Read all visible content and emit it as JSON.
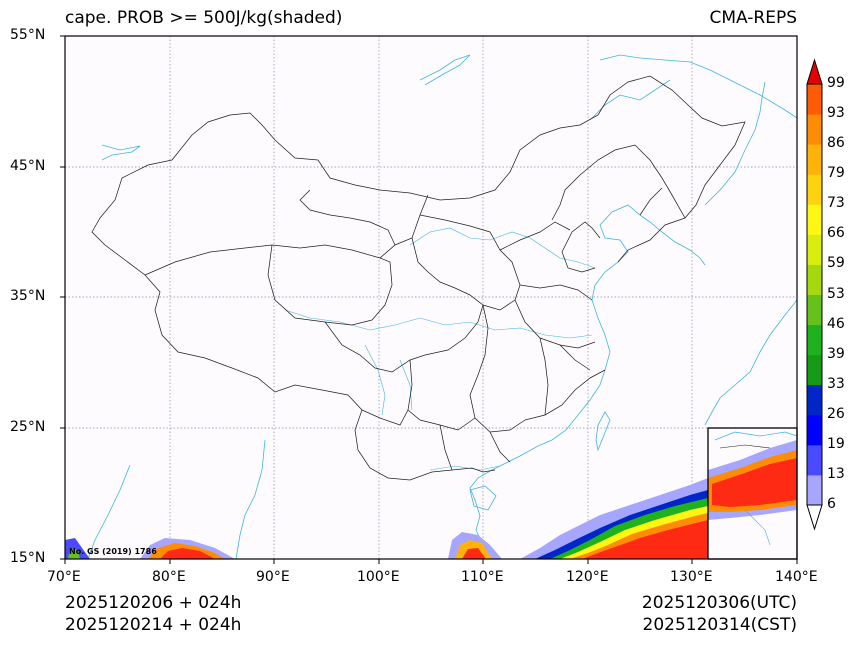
{
  "map": {
    "title_left": "cape. PROB >= 500J/kg(shaded)",
    "title_right": "CMA-REPS",
    "lat_labels": [
      "55°N",
      "45°N",
      "35°N",
      "25°N",
      "15°N"
    ],
    "lon_labels": [
      "70°E",
      "80°E",
      "90°E",
      "100°E",
      "110°E",
      "120°E",
      "130°E",
      "140°E"
    ],
    "review_number": "No. GS (2019) 1786",
    "init_utc": "2025120206  +  024h",
    "init_cst": "2025120214  +  024h",
    "valid_utc": "2025120306(UTC)",
    "valid_cst": "2025120314(CST)"
  },
  "colorbar": {
    "labels": [
      "6",
      "13",
      "19",
      "26",
      "33",
      "39",
      "46",
      "53",
      "59",
      "66",
      "73",
      "79",
      "86",
      "93",
      "99"
    ],
    "colors": [
      "#a6a6ff",
      "#4a4aff",
      "#0000ff",
      "#0026c8",
      "#169b16",
      "#1fb21f",
      "#66c21a",
      "#a6d80f",
      "#d8ee0e",
      "#fff614",
      "#ffd20f",
      "#ffb20a",
      "#ff8c05",
      "#ff5a05",
      "#ff2a14",
      "#e60000"
    ]
  }
}
